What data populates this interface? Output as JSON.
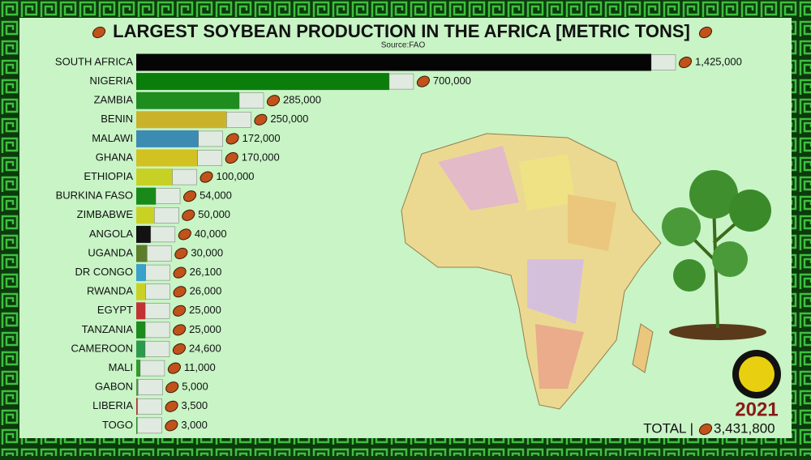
{
  "chart_data": {
    "type": "bar",
    "orientation": "horizontal",
    "title": "LARGEST SOYBEAN PRODUCTION IN THE AFRICA [METRIC TONS]",
    "subtitle": "Source:FAO",
    "year": "2021",
    "total_prefix": "TOTAL |",
    "total": {
      "value": 3431800,
      "label": "3,431,800"
    },
    "categories": [
      "SOUTH AFRICA",
      "NIGERIA",
      "ZAMBIA",
      "BENIN",
      "MALAWI",
      "GHANA",
      "ETHIOPIA",
      "BURKINA FASO",
      "ZIMBABWE",
      "ANGOLA",
      "UGANDA",
      "DR CONGO",
      "RWANDA",
      "EGYPT",
      "TANZANIA",
      "CAMEROON",
      "MALI",
      "GABON",
      "LIBERIA",
      "TOGO"
    ],
    "values": [
      1425000,
      700000,
      285000,
      250000,
      172000,
      170000,
      100000,
      54000,
      50000,
      40000,
      30000,
      26100,
      26000,
      25000,
      25000,
      24600,
      11000,
      5000,
      3500,
      3000
    ],
    "value_labels": [
      "1,425,000",
      "700,000",
      "285,000",
      "250,000",
      "172,000",
      "170,000",
      "100,000",
      "54,000",
      "50,000",
      "40,000",
      "30,000",
      "26,100",
      "26,000",
      "25,000",
      "25,000",
      "24,600",
      "11,000",
      "5,000",
      "3,500",
      "3,000"
    ],
    "colors": [
      "#050505",
      "#0b7d0b",
      "#1f8c1f",
      "#c9b32b",
      "#3b8bb2",
      "#d1c221",
      "#c7d125",
      "#198a19",
      "#c9d124",
      "#121212",
      "#5e7d2a",
      "#3aa1c9",
      "#c9d124",
      "#c23232",
      "#1b8b1b",
      "#2b9b4b",
      "#2c9c2c",
      "#4b9b3b",
      "#b23232",
      "#2b8b2b"
    ],
    "xlim": [
      0,
      1425000
    ]
  }
}
